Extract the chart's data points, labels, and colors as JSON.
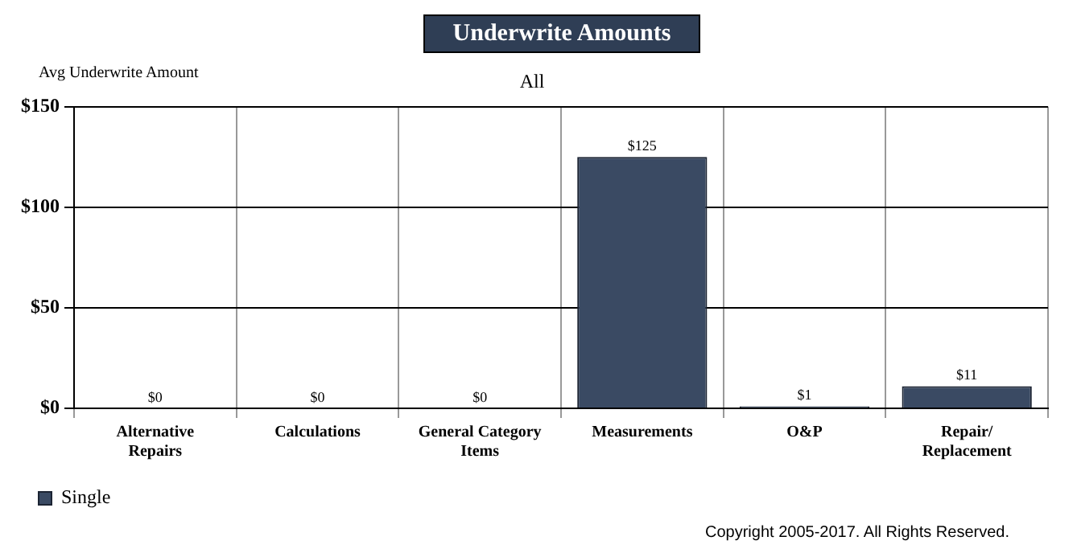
{
  "chart_data": {
    "type": "bar",
    "title": "Underwrite Amounts",
    "subtitle": "All",
    "ylabel": "Avg Underwrite Amount",
    "categories": [
      "Alternative Repairs",
      "Calculations",
      "General Category Items",
      "Measurements",
      "O&P",
      "Repair/ Replacement"
    ],
    "series": [
      {
        "name": "Single",
        "color": "#3a4a63",
        "values": [
          0,
          0,
          0,
          125,
          1,
          11
        ],
        "value_labels": [
          "$0",
          "$0",
          "$0",
          "$125",
          "$1",
          "$11"
        ]
      }
    ],
    "ylim": [
      0,
      150
    ],
    "yticks": [
      {
        "value": 0,
        "label": "$0"
      },
      {
        "value": 50,
        "label": "$50"
      },
      {
        "value": 100,
        "label": "$100"
      },
      {
        "value": 150,
        "label": "$150"
      }
    ],
    "grid": true,
    "legend": "bottom left",
    "annotations": [
      "Copyright 2005-2017. All Rights Reserved."
    ]
  }
}
